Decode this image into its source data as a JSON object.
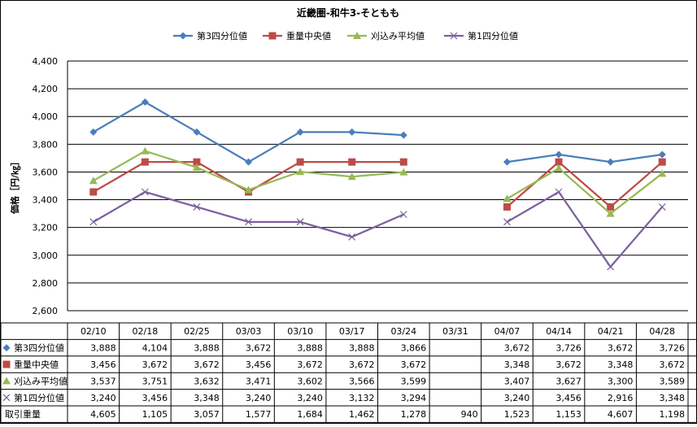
{
  "chart_data": {
    "type": "line",
    "title": "近畿圏-和牛3-そともも",
    "ylabel": "価格［円/㎏］",
    "ylim": [
      2600,
      4400
    ],
    "ystep": 200,
    "grid": true,
    "legend_position": "top",
    "categories": [
      "02/10",
      "02/18",
      "02/25",
      "03/03",
      "03/10",
      "03/17",
      "03/24",
      "03/31",
      "04/07",
      "04/14",
      "04/21",
      "04/28"
    ],
    "series": [
      {
        "name": "第3四分位値",
        "color": "#4a7ebb",
        "marker": "diamond",
        "values": [
          3888,
          4104,
          3888,
          3672,
          3888,
          3888,
          3866,
          null,
          3672,
          3726,
          3672,
          3726
        ],
        "labels": [
          "3,888",
          "4,104",
          "3,888",
          "3,672",
          "3,888",
          "3,888",
          "3,866",
          "",
          "3,672",
          "3,726",
          "3,672",
          "3,726"
        ]
      },
      {
        "name": "重量中央値",
        "color": "#be4b48",
        "marker": "square",
        "values": [
          3456,
          3672,
          3672,
          3456,
          3672,
          3672,
          3672,
          null,
          3348,
          3672,
          3348,
          3672
        ],
        "labels": [
          "3,456",
          "3,672",
          "3,672",
          "3,456",
          "3,672",
          "3,672",
          "3,672",
          "",
          "3,348",
          "3,672",
          "3,348",
          "3,672"
        ]
      },
      {
        "name": "刈込み平均値",
        "color": "#98b954",
        "marker": "triangle",
        "values": [
          3537,
          3751,
          3632,
          3471,
          3602,
          3566,
          3599,
          null,
          3407,
          3627,
          3300,
          3589
        ],
        "labels": [
          "3,537",
          "3,751",
          "3,632",
          "3,471",
          "3,602",
          "3,566",
          "3,599",
          "",
          "3,407",
          "3,627",
          "3,300",
          "3,589"
        ]
      },
      {
        "name": "第1四分位値",
        "color": "#7d60a0",
        "marker": "x",
        "values": [
          3240,
          3456,
          3348,
          3240,
          3240,
          3132,
          3294,
          null,
          3240,
          3456,
          2916,
          3348
        ],
        "labels": [
          "3,240",
          "3,456",
          "3,348",
          "3,240",
          "3,240",
          "3,132",
          "3,294",
          "",
          "3,240",
          "3,456",
          "2,916",
          "3,348"
        ]
      }
    ],
    "volume": {
      "name": "取引重量",
      "values": [
        4605,
        1105,
        3057,
        1577,
        1684,
        1462,
        1278,
        940,
        1523,
        1153,
        4607,
        1198
      ],
      "labels": [
        "4,605",
        "1,105",
        "3,057",
        "1,577",
        "1,684",
        "1,462",
        "1,278",
        "940",
        "1,523",
        "1,153",
        "4,607",
        "1,198"
      ]
    }
  }
}
